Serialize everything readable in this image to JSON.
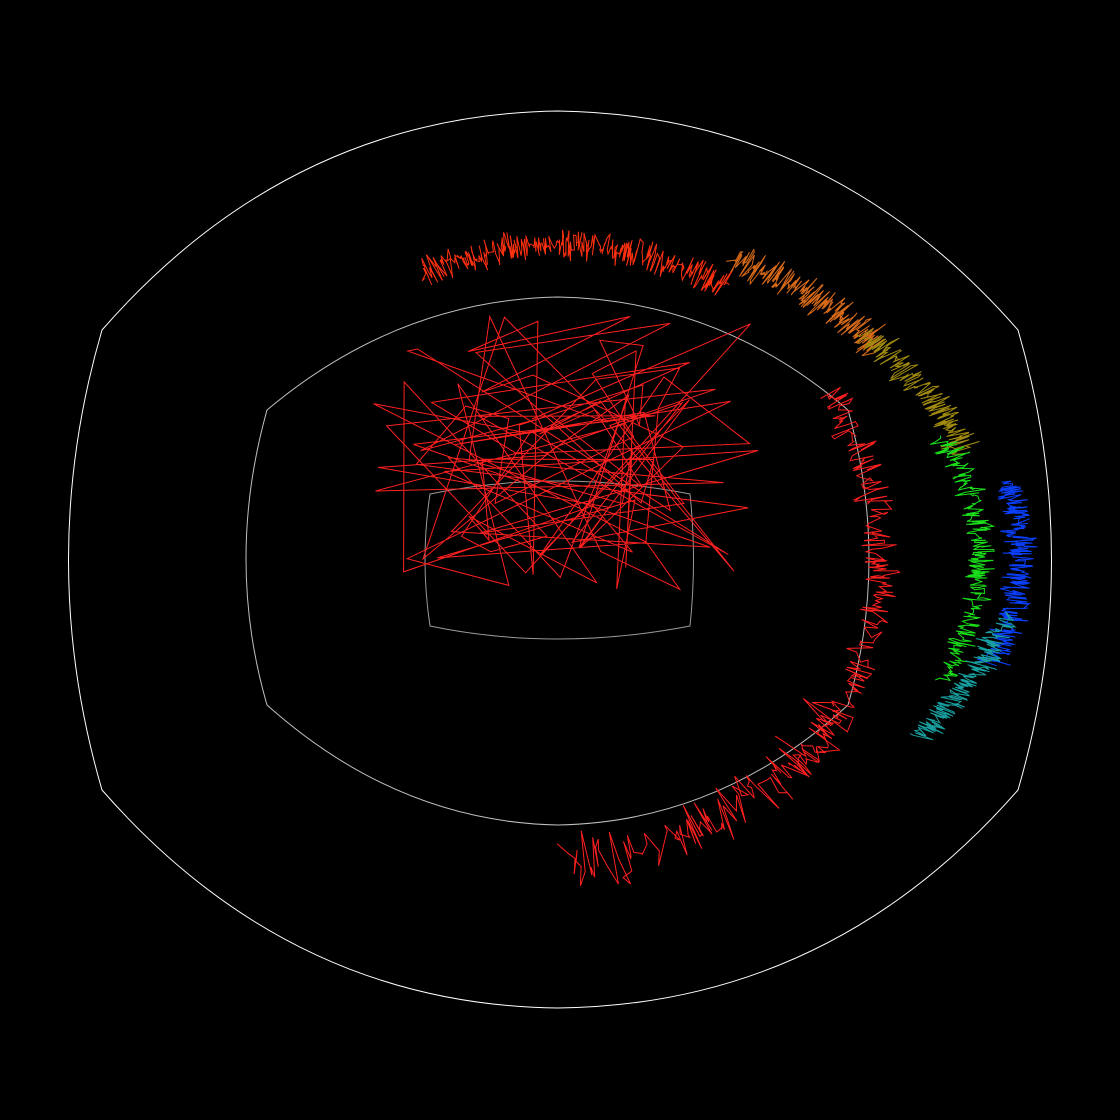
{
  "canvas": {
    "background": "#000000"
  },
  "boundaries": [
    {
      "name": "outer-boundary",
      "color": "#ffffff"
    },
    {
      "name": "middle-boundary",
      "color": "#bfbfbf"
    },
    {
      "name": "inner-boundary",
      "color": "#9a9a9a"
    }
  ],
  "trajectory_colors": [
    "#ff2a1a",
    "#ff3a10",
    "#d86a18",
    "#b07a10",
    "#9a8a10",
    "#1ae01a",
    "#0a3cff",
    "#18a0a0"
  ],
  "trajectories": [
    {
      "name": "inner-tangle-trace",
      "color": "#ff2020"
    },
    {
      "name": "upper-arc-trace",
      "color": "#ff3010"
    },
    {
      "name": "orange-arc-trace",
      "color": "#d86a18"
    },
    {
      "name": "olive-arc-trace",
      "color": "#a08a10"
    },
    {
      "name": "green-arc-trace",
      "color": "#1ae01a"
    },
    {
      "name": "blue-arc-trace",
      "color": "#0a40ff"
    },
    {
      "name": "teal-arc-trace",
      "color": "#18a0a0"
    },
    {
      "name": "right-red-arc-trace",
      "color": "#ff2020"
    },
    {
      "name": "lower-red-arc-trace",
      "color": "#ff2020"
    }
  ]
}
